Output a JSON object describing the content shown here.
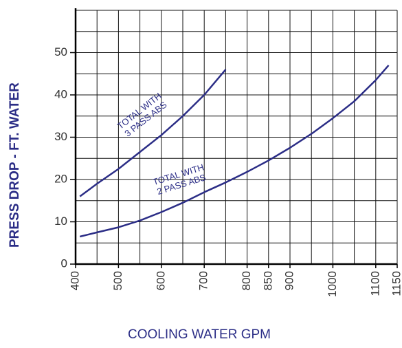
{
  "chart_data": {
    "type": "line",
    "xlabel": "COOLING WATER GPM",
    "ylabel": "PRESS DROP - FT. WATER",
    "xlim": [
      400,
      1150
    ],
    "ylim": [
      0,
      60
    ],
    "xticks": [
      400,
      500,
      600,
      700,
      800,
      850,
      900,
      1000,
      1100,
      1150
    ],
    "yticks": [
      0,
      10,
      20,
      30,
      40,
      50
    ],
    "xgrid": [
      400,
      450,
      500,
      550,
      600,
      650,
      700,
      750,
      800,
      850,
      900,
      950,
      1000,
      1050,
      1100,
      1150
    ],
    "ygrid": [
      0,
      5,
      10,
      15,
      20,
      25,
      30,
      35,
      40,
      45,
      50,
      55,
      60
    ],
    "grid": true,
    "series": [
      {
        "color": "#2b2d86",
        "x": [
          410,
          450,
          500,
          550,
          600,
          650,
          700,
          750
        ],
        "values": [
          16,
          19,
          22.5,
          26.5,
          30.5,
          35,
          40,
          46
        ]
      },
      {
        "color": "#2b2d86",
        "x": [
          410,
          450,
          500,
          550,
          600,
          650,
          700,
          750,
          800,
          850,
          900,
          950,
          1000,
          1050,
          1100,
          1130
        ],
        "values": [
          6.5,
          7.5,
          8.7,
          10.3,
          12.3,
          14.5,
          17,
          19.3,
          21.8,
          24.5,
          27.5,
          30.8,
          34.5,
          38.5,
          43.5,
          47
        ]
      }
    ],
    "annotations": [
      {
        "lines": [
          "TOTAL WITH",
          "3 PASS ABS"
        ]
      },
      {
        "lines": [
          "TOTAL WITH",
          "2 PASS ABS"
        ]
      }
    ]
  }
}
